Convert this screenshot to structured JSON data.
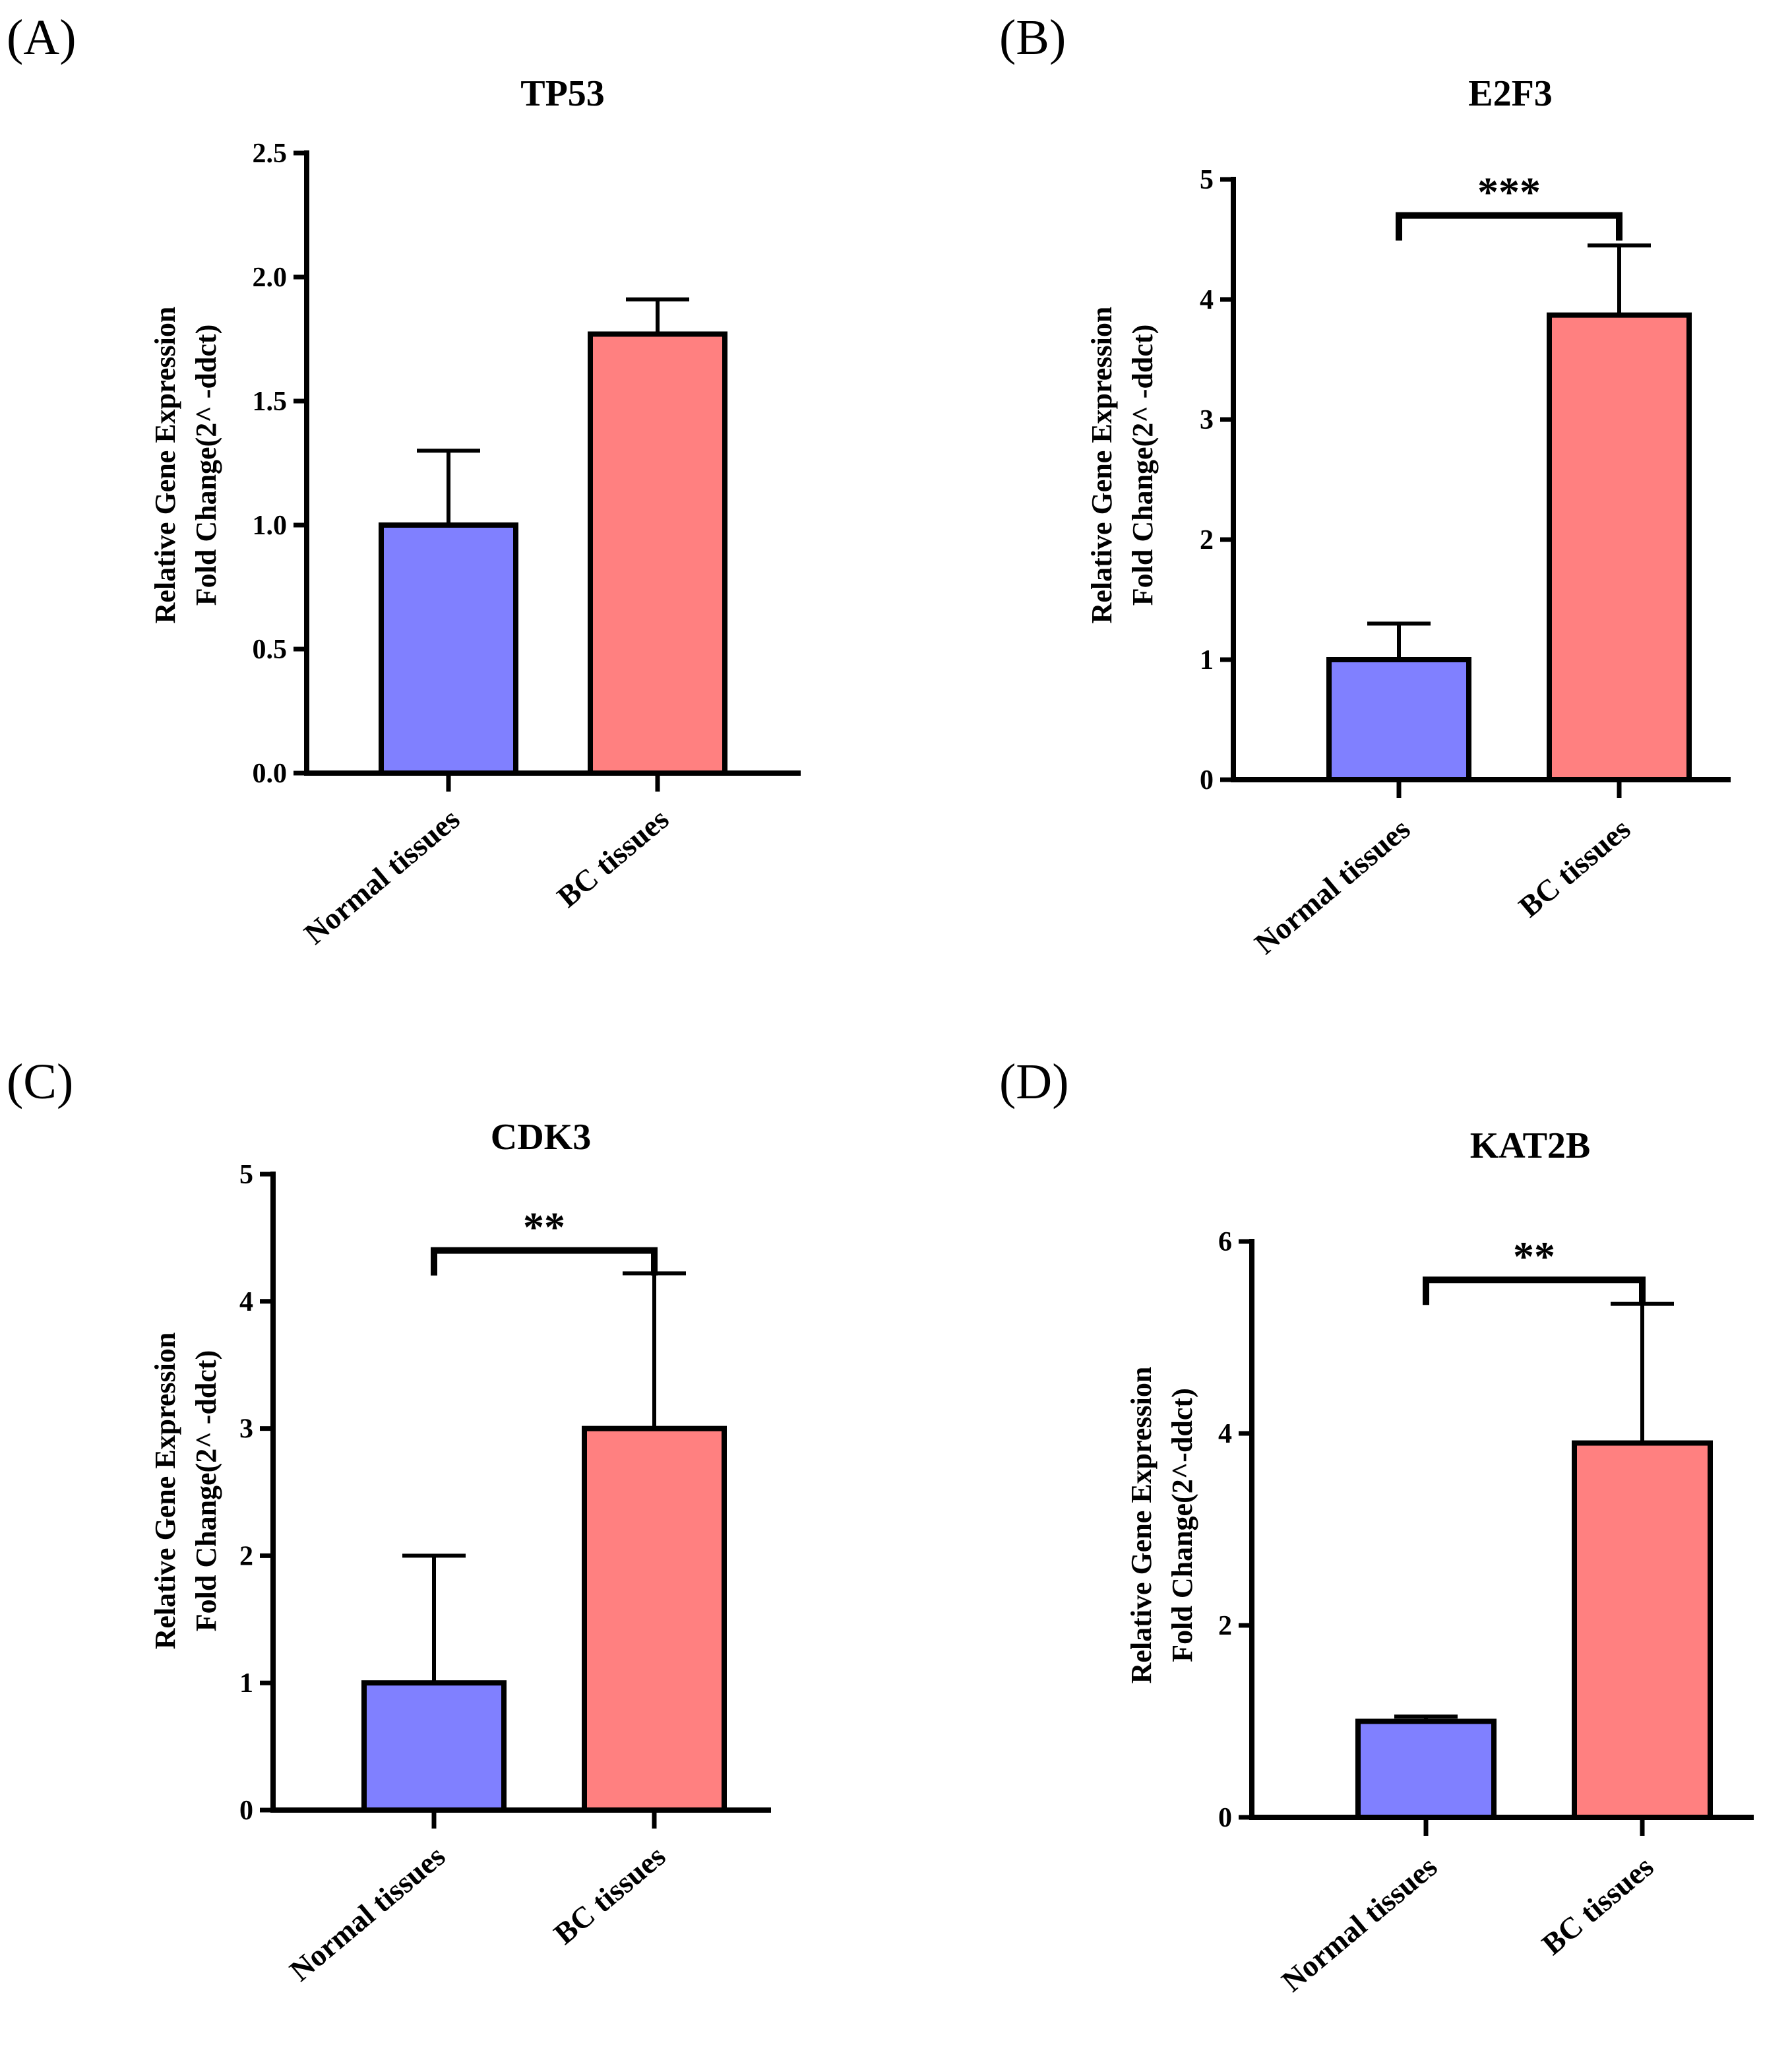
{
  "chart_data": [
    {
      "panel": "(A)",
      "type": "bar",
      "title": "TP53",
      "ylabel_line1": "Relative Gene Expression",
      "ylabel_line2": "Fold Change(2^ -ddct)",
      "categories": [
        "Normal tissues",
        "BC tissues"
      ],
      "values": [
        1.0,
        1.77
      ],
      "error_upper": [
        1.3,
        1.91
      ],
      "colors": [
        "#8080ff",
        "#ff8080"
      ],
      "ylim": [
        0,
        2.5
      ],
      "yticks": [
        0.0,
        0.5,
        1.0,
        1.5,
        2.0,
        2.5
      ],
      "ytick_labels": [
        "0.0",
        "0.5",
        "1.0",
        "1.5",
        "2.0",
        "2.5"
      ],
      "significance": null
    },
    {
      "panel": "(B)",
      "type": "bar",
      "title": "E2F3",
      "ylabel_line1": "Relative Gene Expression",
      "ylabel_line2": "Fold Change(2^ -ddct)",
      "categories": [
        "Normal tissues",
        "BC tissues"
      ],
      "values": [
        1.0,
        3.87
      ],
      "error_upper": [
        1.3,
        4.45
      ],
      "colors": [
        "#8080ff",
        "#ff8080"
      ],
      "ylim": [
        0,
        5
      ],
      "yticks": [
        0,
        1,
        2,
        3,
        4,
        5
      ],
      "ytick_labels": [
        "0",
        "1",
        "2",
        "3",
        "4",
        "5"
      ],
      "significance": {
        "label": "***",
        "y": 4.7
      }
    },
    {
      "panel": "(C)",
      "type": "bar",
      "title": "CDK3",
      "ylabel_line1": "Relative Gene Expression",
      "ylabel_line2": "Fold Change(2^ -ddct)",
      "categories": [
        "Normal tissues",
        "BC tissues"
      ],
      "values": [
        1.0,
        3.0
      ],
      "error_upper": [
        2.0,
        4.22
      ],
      "colors": [
        "#8080ff",
        "#ff8080"
      ],
      "ylim": [
        0,
        5
      ],
      "yticks": [
        0,
        1,
        2,
        3,
        4,
        5
      ],
      "ytick_labels": [
        "0",
        "1",
        "2",
        "3",
        "4",
        "5"
      ],
      "significance": {
        "label": "**",
        "y": 4.4
      }
    },
    {
      "panel": "(D)",
      "type": "bar",
      "title": "KAT2B",
      "ylabel_line1": "Relative Gene Expression",
      "ylabel_line2": "Fold Change(2^-ddct)",
      "categories": [
        "Normal tissues",
        "BC tissues"
      ],
      "values": [
        1.0,
        3.9
      ],
      "error_upper": [
        1.05,
        5.35
      ],
      "colors": [
        "#8080ff",
        "#ff8080"
      ],
      "ylim": [
        0,
        6
      ],
      "yticks": [
        0,
        2,
        4,
        6
      ],
      "ytick_labels": [
        "0",
        "2",
        "4",
        "6"
      ],
      "significance": {
        "label": "**",
        "y": 5.6
      }
    }
  ]
}
